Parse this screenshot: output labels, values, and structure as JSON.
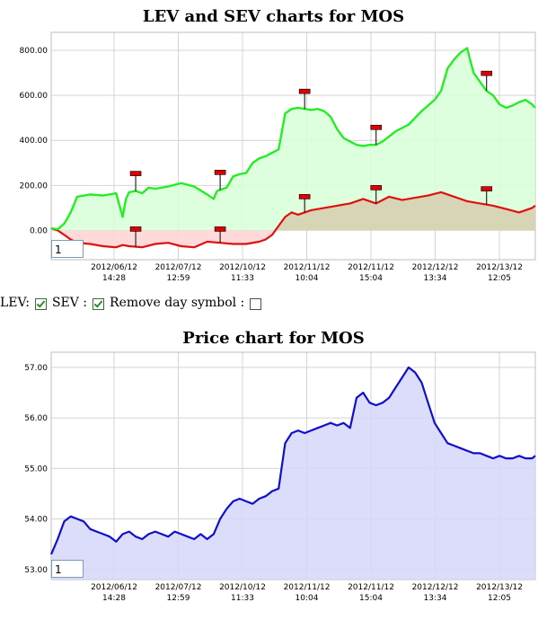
{
  "lev_chart": {
    "title": "LEV and SEV charts for MOS",
    "page_box_value": "1"
  },
  "controls": {
    "lev_label": "LEV:",
    "lev_checked": true,
    "sev_label": "SEV :",
    "sev_checked": true,
    "remove_label": "Remove day symbol :",
    "remove_checked": false
  },
  "price_chart": {
    "title": "Price chart for MOS",
    "page_box_value": "1"
  },
  "colors": {
    "lev_line": "#22ee22",
    "lev_fill": "#d8ffd8",
    "sev_line": "#e01010",
    "sev_fill_neg": "#ffd6d6",
    "sev_fill_pos": "#d6d0b0",
    "price_line": "#1010cc",
    "price_fill": "#d6d6fa",
    "flag": "#e00000"
  },
  "chart_data": [
    {
      "type": "area",
      "title": "LEV and SEV charts for MOS",
      "x_tick_labels": [
        [
          "2012/06/12",
          "14:28"
        ],
        [
          "2012/07/12",
          "12:59"
        ],
        [
          "2012/10/12",
          "11:33"
        ],
        [
          "2012/11/12",
          "10:04"
        ],
        [
          "2012/11/12",
          "15:04"
        ],
        [
          "2012/12/12",
          "13:34"
        ],
        [
          "2012/13/12",
          "12:05"
        ]
      ],
      "y_ticks": [
        "0.00",
        "200.00",
        "400.00",
        "600.00",
        "800.00"
      ],
      "ylim": [
        -130,
        880
      ],
      "n_points": 100,
      "series": [
        {
          "name": "LEV",
          "x": [
            0,
            2,
            4,
            6,
            8,
            12,
            16,
            20,
            22,
            23,
            24,
            26,
            28,
            30,
            32,
            36,
            40,
            44,
            48,
            50,
            51,
            52,
            54,
            56,
            58,
            60,
            62,
            64,
            66,
            68,
            70,
            72,
            74,
            76,
            78,
            80,
            82,
            84,
            86,
            88,
            90,
            92,
            94,
            96,
            98,
            100,
            102,
            106,
            110,
            114,
            118,
            120,
            122,
            124,
            126,
            128,
            130,
            132,
            134,
            136,
            138,
            140,
            142,
            144,
            146,
            148,
            149
          ],
          "values": [
            10,
            5,
            30,
            80,
            150,
            160,
            155,
            165,
            60,
            140,
            170,
            175,
            165,
            190,
            185,
            195,
            210,
            195,
            160,
            140,
            175,
            180,
            190,
            240,
            250,
            255,
            300,
            320,
            330,
            345,
            360,
            520,
            540,
            545,
            540,
            535,
            540,
            530,
            505,
            450,
            410,
            395,
            380,
            375,
            380,
            380,
            395,
            440,
            470,
            530,
            580,
            620,
            720,
            760,
            790,
            810,
            700,
            660,
            620,
            600,
            560,
            545,
            555,
            570,
            580,
            560,
            545
          ]
        },
        {
          "name": "SEV",
          "x": [
            0,
            2,
            4,
            6,
            8,
            12,
            16,
            20,
            22,
            24,
            28,
            32,
            36,
            40,
            44,
            48,
            52,
            56,
            60,
            64,
            66,
            68,
            70,
            72,
            74,
            76,
            80,
            84,
            88,
            92,
            96,
            100,
            104,
            108,
            112,
            116,
            120,
            124,
            128,
            132,
            136,
            140,
            144,
            148,
            149
          ],
          "values": [
            10,
            0,
            -20,
            -40,
            -55,
            -60,
            -70,
            -75,
            -65,
            -70,
            -75,
            -60,
            -55,
            -70,
            -75,
            -50,
            -55,
            -60,
            -60,
            -50,
            -40,
            -20,
            20,
            60,
            80,
            70,
            90,
            100,
            110,
            120,
            140,
            120,
            150,
            135,
            145,
            155,
            170,
            150,
            130,
            120,
            110,
            95,
            80,
            100,
            110
          ]
        }
      ],
      "day_markers_lev": [
        26,
        52,
        78,
        100,
        134
      ],
      "day_markers_sev": [
        26,
        52,
        78,
        100,
        134
      ]
    },
    {
      "type": "area",
      "title": "Price chart for MOS",
      "x_tick_labels": [
        [
          "2012/06/12",
          "14:28"
        ],
        [
          "2012/07/12",
          "12:59"
        ],
        [
          "2012/10/12",
          "11:33"
        ],
        [
          "2012/11/12",
          "10:04"
        ],
        [
          "2012/11/12",
          "15:04"
        ],
        [
          "2012/12/12",
          "13:34"
        ],
        [
          "2012/13/12",
          "12:05"
        ]
      ],
      "y_ticks": [
        "53.00",
        "54.00",
        "55.00",
        "56.00",
        "57.00"
      ],
      "ylim": [
        52.8,
        57.3
      ],
      "series": [
        {
          "name": "Price",
          "x": [
            0,
            2,
            4,
            6,
            8,
            10,
            12,
            14,
            16,
            18,
            20,
            22,
            24,
            26,
            28,
            30,
            32,
            34,
            36,
            38,
            40,
            42,
            44,
            46,
            48,
            50,
            52,
            54,
            56,
            58,
            60,
            62,
            64,
            66,
            68,
            70,
            72,
            74,
            76,
            78,
            80,
            82,
            84,
            86,
            88,
            90,
            92,
            94,
            96,
            98,
            100,
            102,
            104,
            106,
            108,
            110,
            112,
            114,
            116,
            118,
            120,
            122,
            124,
            126,
            128,
            130,
            132,
            134,
            136,
            138,
            140,
            142,
            144,
            146,
            148,
            149
          ],
          "values": [
            53.3,
            53.6,
            53.95,
            54.05,
            54.0,
            53.95,
            53.8,
            53.75,
            53.7,
            53.65,
            53.55,
            53.7,
            53.75,
            53.65,
            53.6,
            53.7,
            53.75,
            53.7,
            53.65,
            53.75,
            53.7,
            53.65,
            53.6,
            53.7,
            53.6,
            53.7,
            54.0,
            54.2,
            54.35,
            54.4,
            54.35,
            54.3,
            54.4,
            54.45,
            54.55,
            54.6,
            55.5,
            55.7,
            55.75,
            55.7,
            55.75,
            55.8,
            55.85,
            55.9,
            55.85,
            55.9,
            55.8,
            56.4,
            56.5,
            56.3,
            56.25,
            56.3,
            56.4,
            56.6,
            56.8,
            57.0,
            56.9,
            56.7,
            56.3,
            55.9,
            55.7,
            55.5,
            55.45,
            55.4,
            55.35,
            55.3,
            55.3,
            55.25,
            55.2,
            55.25,
            55.2,
            55.2,
            55.25,
            55.2,
            55.2,
            55.25
          ]
        }
      ]
    }
  ]
}
